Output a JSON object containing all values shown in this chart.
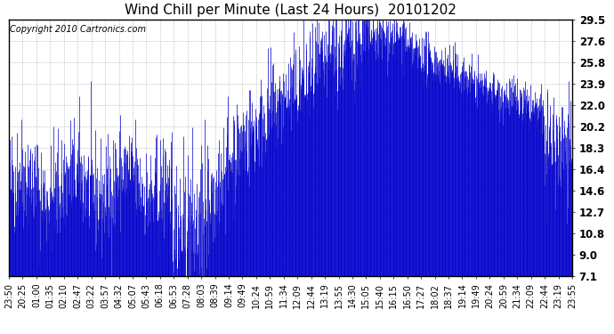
{
  "title": "Wind Chill per Minute (Last 24 Hours)  20101202",
  "copyright": "Copyright 2010 Cartronics.com",
  "yticks": [
    7.1,
    9.0,
    10.8,
    12.7,
    14.6,
    16.4,
    18.3,
    20.2,
    22.0,
    23.9,
    25.8,
    27.6,
    29.5
  ],
  "ylim": [
    7.1,
    29.5
  ],
  "xtick_labels": [
    "23:50",
    "20:25",
    "01:00",
    "01:35",
    "02:10",
    "02:47",
    "03:22",
    "03:57",
    "04:32",
    "05:07",
    "05:43",
    "06:18",
    "06:53",
    "07:28",
    "08:03",
    "08:39",
    "09:14",
    "09:49",
    "10:24",
    "10:59",
    "11:34",
    "12:09",
    "12:44",
    "13:19",
    "13:55",
    "14:30",
    "15:05",
    "15:40",
    "16:15",
    "16:50",
    "17:27",
    "18:02",
    "18:37",
    "19:14",
    "19:49",
    "20:24",
    "20:59",
    "21:34",
    "22:09",
    "22:44",
    "23:19",
    "23:55"
  ],
  "line_color": "#0000cc",
  "bg_color": "#ffffff",
  "plot_bg_color": "#ffffff",
  "grid_color": "#aaaaaa",
  "title_color": "#000000",
  "copyright_color": "#000000",
  "title_fontsize": 11,
  "copyright_fontsize": 7,
  "tick_fontsize": 7,
  "ytick_fontsize": 8.5,
  "figsize": [
    6.9,
    3.75
  ],
  "dpi": 100
}
